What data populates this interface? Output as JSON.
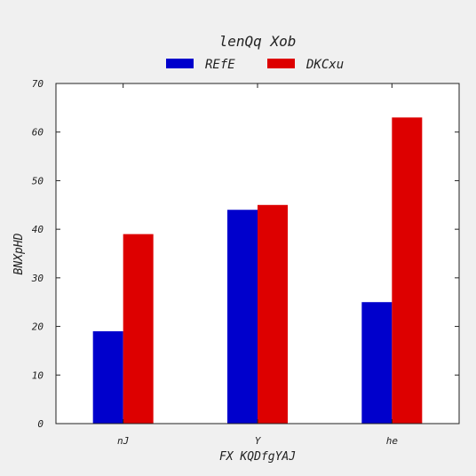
{
  "chart_data": {
    "type": "bar",
    "title": "lenQq Xob",
    "xlabel": "FX KQDfgYAJ",
    "ylabel": "BNXpHD",
    "categories": [
      "nJ",
      "Y",
      "he"
    ],
    "series": [
      {
        "name": "REfE",
        "values": [
          19,
          44,
          25
        ],
        "color": "#0000cc"
      },
      {
        "name": "DKCxu",
        "values": [
          39,
          45,
          63
        ],
        "color": "#dd0000"
      }
    ],
    "ylim": [
      0,
      70
    ],
    "yticks": [
      0,
      10,
      20,
      30,
      40,
      50,
      60,
      70
    ],
    "grid": false,
    "legend_position": "top-center"
  }
}
